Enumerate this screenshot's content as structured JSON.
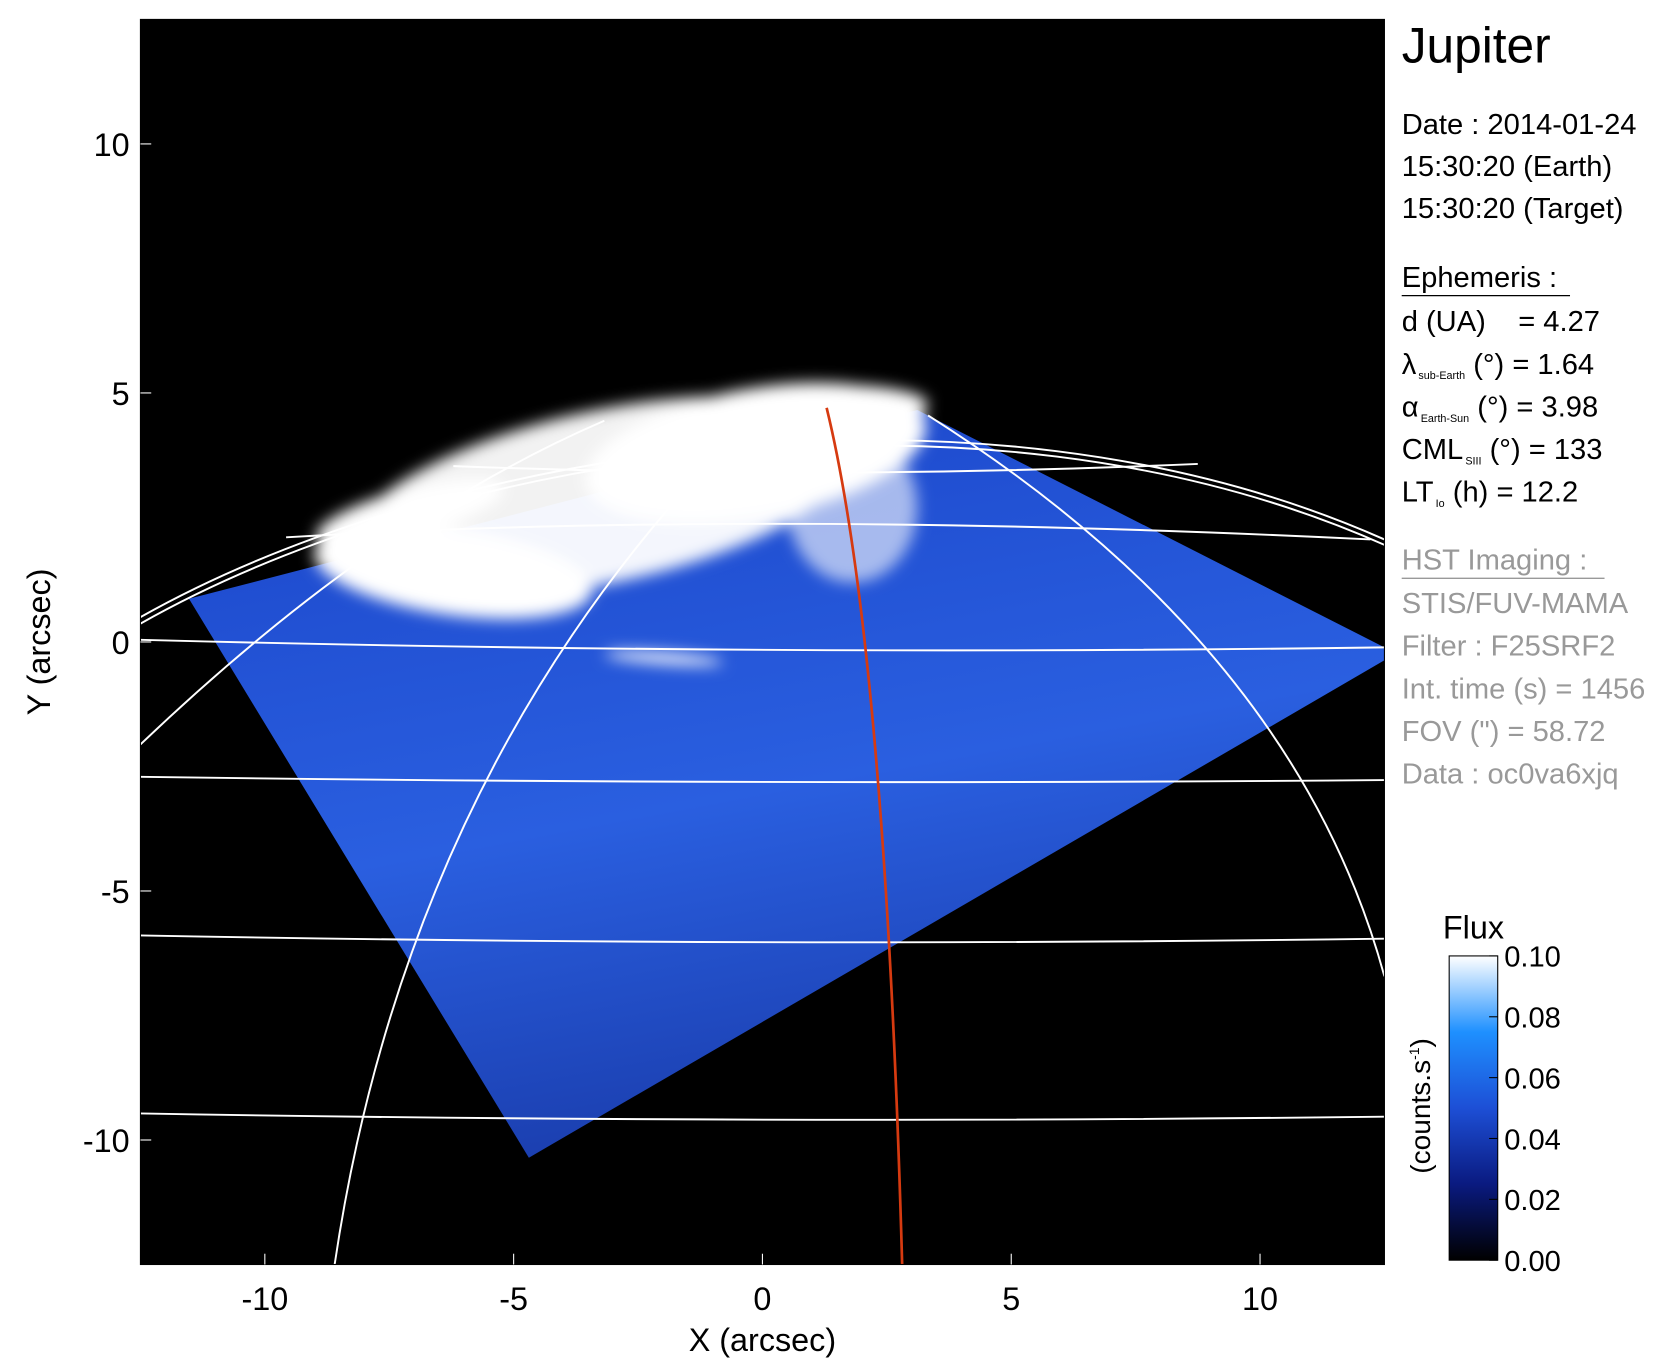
{
  "chart_data": {
    "type": "image",
    "title": "Jupiter",
    "xlabel": "X (arcsec)",
    "ylabel": "Y (arcsec)",
    "xlim": [
      -12.5,
      12.5
    ],
    "ylim": [
      -12.5,
      12.5
    ],
    "xticks": [
      -10,
      -5,
      0,
      5,
      10
    ],
    "yticks": [
      -10,
      -5,
      0,
      5,
      10
    ],
    "info": [
      "Date : 2014-01-24",
      "15:30:20 (Earth)",
      "15:30:20 (Target)"
    ],
    "ephemeris_title": "Ephemeris :",
    "ephemeris": [
      {
        "main": "d (UA)    = 4.27"
      },
      {
        "main": "λ",
        "sub": "sub-Earth",
        "rest": " (°) = 1.64"
      },
      {
        "main": "α",
        "sub": "Earth-Sun",
        "rest": " (°) = 3.98"
      },
      {
        "main": "CML",
        "sub": "SIII",
        "rest": " (°) = 133"
      },
      {
        "main": "LT",
        "sub": "Io",
        "rest": " (h) = 12.2"
      }
    ],
    "imaging_title": "HST Imaging :",
    "imaging": [
      "STIS/FUV-MAMA",
      "Filter : F25SRF2",
      "Int. time (s) = 1456",
      "FOV (\") = 58.72",
      "Data : oc0va6xjq"
    ],
    "colorbar": {
      "title": "Flux",
      "unit": {
        "text": "(counts.s",
        "sup": "-1",
        "end": ")"
      },
      "clim": [
        0,
        0.1
      ],
      "ticks": [
        {
          "value": 0,
          "label": "0.00"
        },
        {
          "value": 0.02,
          "label": "0.02"
        },
        {
          "value": 0.04,
          "label": "0.04"
        },
        {
          "value": 0.06,
          "label": "0.06"
        },
        {
          "value": 0.08,
          "label": "0.08"
        },
        {
          "value": 0.1,
          "label": "0.10"
        }
      ],
      "colormap": [
        "#000000",
        "#0a1a80",
        "#1d4fd6",
        "#1e90ff",
        "#ffffff"
      ]
    }
  }
}
